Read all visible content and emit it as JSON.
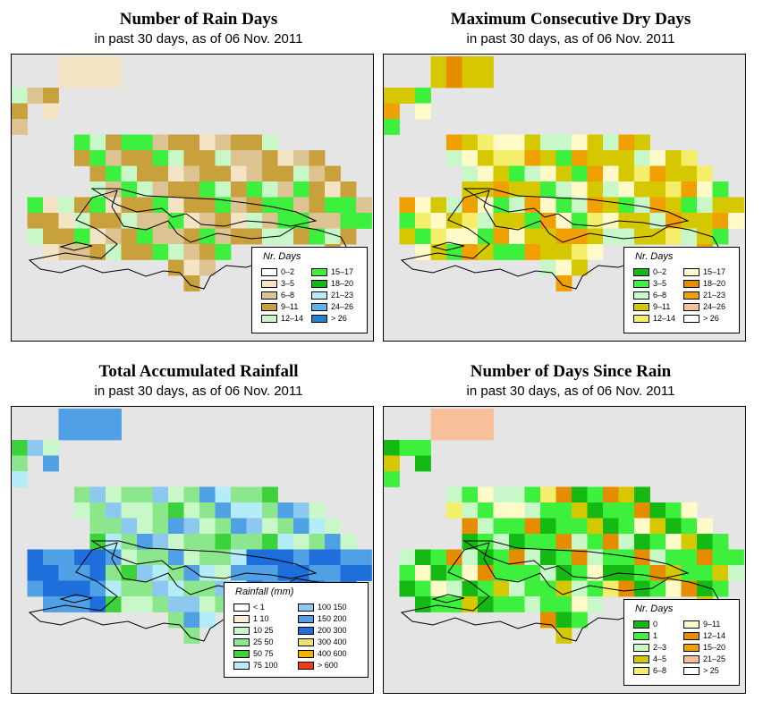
{
  "panels": [
    {
      "title": "Number of Rain Days",
      "subtitle": "in past 30 days, as of  06 Nov. 2011",
      "legend": {
        "title": "Nr. Days",
        "items": [
          {
            "label": "0–2",
            "color": "#ffffff"
          },
          {
            "label": "3–5",
            "color": "#f3e4c6"
          },
          {
            "label": "6–8",
            "color": "#dcc391"
          },
          {
            "label": "9–11",
            "color": "#c8a03c"
          },
          {
            "label": "12–14",
            "color": "#c8f7c8"
          },
          {
            "label": "15–17",
            "color": "#3ef03e"
          },
          {
            "label": "18–20",
            "color": "#14b914"
          },
          {
            "label": "21–23",
            "color": "#b4ecf8"
          },
          {
            "label": "24–26",
            "color": "#5ab4ee"
          },
          {
            "label": "> 26",
            "color": "#1e82d2"
          }
        ]
      }
    },
    {
      "title": "Maximum Consecutive Dry Days",
      "subtitle": "in past 30 days, as of  06 Nov. 2011",
      "legend": {
        "title": "Nr. Days",
        "items": [
          {
            "label": "0–2",
            "color": "#14b914"
          },
          {
            "label": "3–5",
            "color": "#3ef03e"
          },
          {
            "label": "6–8",
            "color": "#c8f7c8"
          },
          {
            "label": "9–11",
            "color": "#d6c800"
          },
          {
            "label": "12–14",
            "color": "#f4ee6a"
          },
          {
            "label": "15–17",
            "color": "#fffac8"
          },
          {
            "label": "18–20",
            "color": "#e68c00"
          },
          {
            "label": "21–23",
            "color": "#f0a000"
          },
          {
            "label": "24–26",
            "color": "#f8c09a"
          },
          {
            "label": "> 26",
            "color": "#ffffff"
          }
        ]
      }
    },
    {
      "title": "Total Accumulated Rainfall",
      "subtitle": "in past 30 days, as of  06 Nov. 2011",
      "legend": {
        "title": "Rainfall (mm)",
        "items": [
          {
            "label": "< 1",
            "color": "#ffffff"
          },
          {
            "label": "1    10",
            "color": "#f8ecd2"
          },
          {
            "label": "10   25",
            "color": "#c8f7c8"
          },
          {
            "label": "25   50",
            "color": "#8ce68c"
          },
          {
            "label": "50   75",
            "color": "#3cd23c"
          },
          {
            "label": "75  100",
            "color": "#b4ecf8"
          },
          {
            "label": "100  150",
            "color": "#8cc8f0"
          },
          {
            "label": "150  200",
            "color": "#50a0e6"
          },
          {
            "label": "200  300",
            "color": "#1e6edc"
          },
          {
            "label": "300  400",
            "color": "#f0e070"
          },
          {
            "label": "400  600",
            "color": "#f0b400"
          },
          {
            "label": "> 600",
            "color": "#f03c14"
          }
        ]
      }
    },
    {
      "title": "Number of Days Since Rain",
      "subtitle": "in past 30 days, as of  06 Nov. 2011",
      "legend": {
        "title": "Nr. Days",
        "items": [
          {
            "label": "0",
            "color": "#14b914"
          },
          {
            "label": "1",
            "color": "#3ef03e"
          },
          {
            "label": "2–3",
            "color": "#c8f7c8"
          },
          {
            "label": "4–5",
            "color": "#d6c800"
          },
          {
            "label": "6–8",
            "color": "#f4ee6a"
          },
          {
            "label": "9–11",
            "color": "#fffac8"
          },
          {
            "label": "12–14",
            "color": "#e68c00"
          },
          {
            "label": "15–20",
            "color": "#f0a000"
          },
          {
            "label": "21–25",
            "color": "#f8c09a"
          },
          {
            "label": "> 25",
            "color": "#ffffff"
          }
        ]
      }
    }
  ]
}
